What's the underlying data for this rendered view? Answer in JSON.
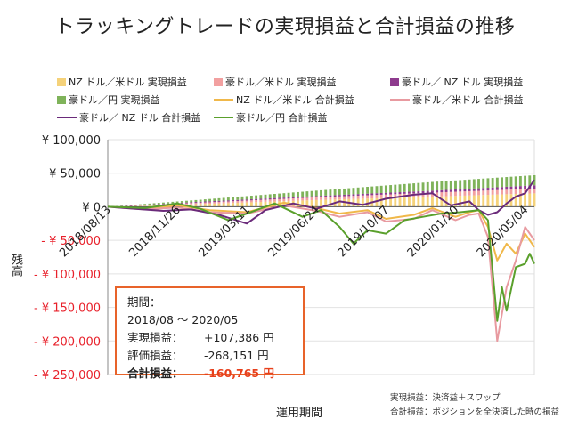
{
  "chart_data": {
    "type": "bar+line",
    "title": "トラッキングトレードの実現損益と合計損益の推移",
    "xlabel": "運用期間",
    "ylabel": "残高",
    "ylim": [
      -250000,
      100000
    ],
    "y_ticks": [
      {
        "value": 100000,
        "label": "¥ 100,000"
      },
      {
        "value": 50000,
        "label": "¥ 50,000"
      },
      {
        "value": 0,
        "label": "¥ 0"
      },
      {
        "value": -50000,
        "label": "- ¥ 50,000"
      },
      {
        "value": -100000,
        "label": "- ¥ 100,000"
      },
      {
        "value": -150000,
        "label": "- ¥ 150,000"
      },
      {
        "value": -200000,
        "label": "- ¥ 200,000"
      },
      {
        "value": -250000,
        "label": "- ¥ 250,000"
      }
    ],
    "x_ticks": [
      {
        "week": 0,
        "label": "2018/08/13"
      },
      {
        "week": 15,
        "label": "2018/11/26"
      },
      {
        "week": 30,
        "label": "2019/03/11"
      },
      {
        "week": 45,
        "label": "2019/06/24"
      },
      {
        "week": 60,
        "label": "2019/10/07"
      },
      {
        "week": 75,
        "label": "2020/01/20"
      },
      {
        "week": 90,
        "label": "2020/05/04"
      }
    ],
    "num_weeks": 92,
    "realized_series": [
      {
        "name": "NZ ドル／米ドル 実現損益",
        "color": "#f5d27a",
        "points": [
          [
            0,
            0
          ],
          [
            20,
            4000
          ],
          [
            45,
            10000
          ],
          [
            70,
            15000
          ],
          [
            92,
            20000
          ]
        ]
      },
      {
        "name": "豪ドル／米ドル 実現損益",
        "color": "#f2a0a0",
        "points": [
          [
            0,
            0
          ],
          [
            20,
            2000
          ],
          [
            45,
            4000
          ],
          [
            70,
            6000
          ],
          [
            92,
            7000
          ]
        ]
      },
      {
        "name": "豪ドル／ NZ ドル 実現損益",
        "color": "#8e3b8e",
        "points": [
          [
            0,
            0
          ],
          [
            20,
            1500
          ],
          [
            45,
            2000
          ],
          [
            70,
            3000
          ],
          [
            92,
            5000
          ]
        ]
      },
      {
        "name": "豪ドル／円 実現損益",
        "color": "#7fb35a",
        "points": [
          [
            0,
            0
          ],
          [
            20,
            3000
          ],
          [
            45,
            8000
          ],
          [
            70,
            13000
          ],
          [
            92,
            15000
          ]
        ]
      }
    ],
    "total_series": [
      {
        "name": "NZ ドル／米ドル 合計損益",
        "color": "#f0b84a",
        "points": [
          [
            0,
            0
          ],
          [
            8,
            -3000
          ],
          [
            15,
            2000
          ],
          [
            22,
            -5000
          ],
          [
            30,
            -8000
          ],
          [
            38,
            6000
          ],
          [
            45,
            -2000
          ],
          [
            50,
            -10000
          ],
          [
            56,
            -5000
          ],
          [
            60,
            -18000
          ],
          [
            66,
            -12000
          ],
          [
            70,
            -2000
          ],
          [
            75,
            -15000
          ],
          [
            78,
            -8000
          ],
          [
            80,
            -5000
          ],
          [
            82,
            -30000
          ],
          [
            84,
            -80000
          ],
          [
            86,
            -55000
          ],
          [
            88,
            -70000
          ],
          [
            90,
            -40000
          ],
          [
            92,
            -60000
          ]
        ]
      },
      {
        "name": "豪ドル／米ドル 合計損益",
        "color": "#e89aa0",
        "points": [
          [
            0,
            0
          ],
          [
            8,
            -4000
          ],
          [
            15,
            -1000
          ],
          [
            22,
            -8000
          ],
          [
            30,
            -10000
          ],
          [
            38,
            2000
          ],
          [
            45,
            -6000
          ],
          [
            50,
            -15000
          ],
          [
            56,
            -8000
          ],
          [
            60,
            -22000
          ],
          [
            66,
            -18000
          ],
          [
            70,
            -5000
          ],
          [
            75,
            -20000
          ],
          [
            78,
            -12000
          ],
          [
            80,
            -10000
          ],
          [
            82,
            -45000
          ],
          [
            84,
            -200000
          ],
          [
            86,
            -120000
          ],
          [
            88,
            -80000
          ],
          [
            90,
            -30000
          ],
          [
            92,
            -50000
          ]
        ]
      },
      {
        "name": "豪ドル／ NZ ドル 合計損益",
        "color": "#6a2a7a",
        "points": [
          [
            0,
            0
          ],
          [
            6,
            -3000
          ],
          [
            12,
            -6000
          ],
          [
            18,
            -4000
          ],
          [
            24,
            -12000
          ],
          [
            30,
            -25000
          ],
          [
            34,
            -5000
          ],
          [
            40,
            5000
          ],
          [
            45,
            -3000
          ],
          [
            50,
            8000
          ],
          [
            55,
            3000
          ],
          [
            60,
            12000
          ],
          [
            66,
            18000
          ],
          [
            70,
            20000
          ],
          [
            74,
            2000
          ],
          [
            78,
            8000
          ],
          [
            80,
            -5000
          ],
          [
            82,
            -12000
          ],
          [
            84,
            -8000
          ],
          [
            86,
            5000
          ],
          [
            88,
            15000
          ],
          [
            90,
            20000
          ],
          [
            92,
            40000
          ]
        ]
      },
      {
        "name": "豪ドル／円 合計損益",
        "color": "#5aa02c",
        "points": [
          [
            0,
            0
          ],
          [
            8,
            -2000
          ],
          [
            15,
            5000
          ],
          [
            20,
            -3000
          ],
          [
            26,
            -20000
          ],
          [
            30,
            -10000
          ],
          [
            36,
            5000
          ],
          [
            42,
            -15000
          ],
          [
            46,
            -5000
          ],
          [
            50,
            -30000
          ],
          [
            53,
            -55000
          ],
          [
            56,
            -35000
          ],
          [
            60,
            -40000
          ],
          [
            64,
            -20000
          ],
          [
            68,
            -15000
          ],
          [
            72,
            -10000
          ],
          [
            76,
            -8000
          ],
          [
            80,
            -5000
          ],
          [
            82,
            -20000
          ],
          [
            84,
            -170000
          ],
          [
            85,
            -120000
          ],
          [
            86,
            -155000
          ],
          [
            88,
            -90000
          ],
          [
            90,
            -85000
          ],
          [
            91,
            -70000
          ],
          [
            92,
            -85000
          ]
        ]
      }
    ]
  },
  "legend": [
    {
      "label": "NZ ドル／米ドル 実現損益",
      "kind": "bar",
      "color": "#f5d27a"
    },
    {
      "label": "豪ドル／米ドル 実現損益",
      "kind": "bar",
      "color": "#f2a0a0"
    },
    {
      "label": "豪ドル／ NZ ドル 実現損益",
      "kind": "bar",
      "color": "#8e3b8e"
    },
    {
      "label": "豪ドル／円 実現損益",
      "kind": "bar",
      "color": "#7fb35a"
    },
    {
      "label": "NZ ドル／米ドル 合計損益",
      "kind": "line",
      "color": "#f0b84a"
    },
    {
      "label": "豪ドル／米ドル 合計損益",
      "kind": "line",
      "color": "#e89aa0"
    },
    {
      "label": "豪ドル／ NZ ドル 合計損益",
      "kind": "line",
      "color": "#6a2a7a"
    },
    {
      "label": "豪ドル／円 合計損益",
      "kind": "line",
      "color": "#5aa02c"
    }
  ],
  "summary": {
    "period_key": "期間：",
    "period_val": "2018/08 ～ 2020/05",
    "realized_key": "実現損益：",
    "realized_val": "+107,386 円",
    "unrealized_key": "評価損益：",
    "unrealized_val": "-268,151 円",
    "total_key": "合計損益：",
    "total_val": "-160,765 円"
  },
  "notes": {
    "realized": "実現損益：決済益＋スワップ",
    "total": "合計損益：ポジションを全決済した時の損益"
  },
  "colors": {
    "negative_tick": "#e8202a",
    "positive_tick": "#222222",
    "accent": "#e8632a"
  }
}
